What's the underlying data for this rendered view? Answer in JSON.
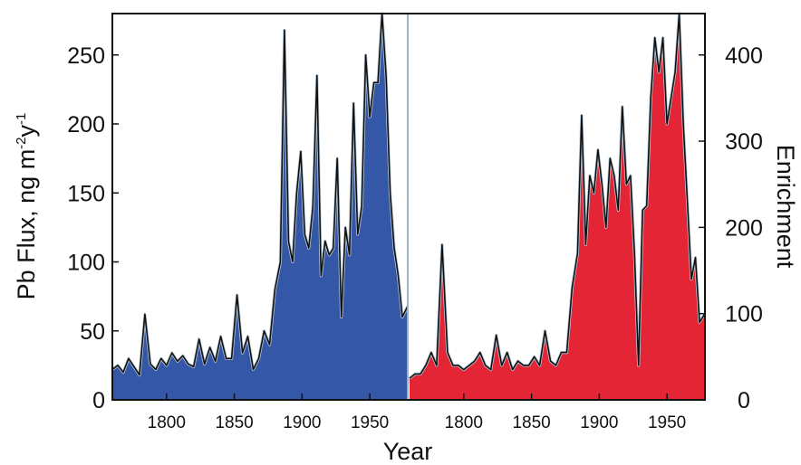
{
  "chart_data": [
    {
      "type": "area",
      "color": "#3557a8",
      "xlim": [
        1760,
        1978
      ],
      "ylim": [
        0,
        280
      ],
      "ylabel_main": "Pb Flux, ng m",
      "ylabel_sup1": "-2",
      "ylabel_mid": "y",
      "ylabel_sup2": "-1",
      "yticks": [
        0,
        50,
        100,
        150,
        200,
        250
      ],
      "xticks": [
        1800,
        1850,
        1900,
        1950
      ],
      "x": [
        1760,
        1764,
        1768,
        1772,
        1776,
        1780,
        1784,
        1788,
        1792,
        1796,
        1800,
        1804,
        1808,
        1812,
        1816,
        1820,
        1824,
        1828,
        1832,
        1836,
        1840,
        1844,
        1848,
        1852,
        1856,
        1860,
        1864,
        1868,
        1872,
        1876,
        1880,
        1884,
        1887,
        1890,
        1893,
        1896,
        1899,
        1902,
        1905,
        1908,
        1911,
        1914,
        1917,
        1920,
        1923,
        1926,
        1929,
        1932,
        1935,
        1938,
        1941,
        1944,
        1947,
        1950,
        1953,
        1956,
        1959,
        1962,
        1965,
        1968,
        1971,
        1974,
        1978
      ],
      "y": [
        22,
        25,
        20,
        30,
        24,
        18,
        62,
        26,
        22,
        30,
        25,
        34,
        28,
        32,
        26,
        24,
        44,
        26,
        38,
        28,
        46,
        30,
        30,
        76,
        34,
        46,
        22,
        30,
        50,
        40,
        80,
        100,
        268,
        115,
        100,
        150,
        180,
        120,
        110,
        140,
        235,
        90,
        115,
        105,
        110,
        175,
        60,
        125,
        105,
        215,
        120,
        140,
        250,
        205,
        230,
        230,
        280,
        235,
        150,
        110,
        90,
        60,
        68
      ]
    },
    {
      "type": "area",
      "color": "#e32536",
      "xlim": [
        1760,
        1978
      ],
      "ylim": [
        0,
        448
      ],
      "ylabel": "Enrichment",
      "yticks": [
        0,
        100,
        200,
        300,
        400
      ],
      "xticks": [
        1800,
        1850,
        1900,
        1950
      ],
      "x": [
        1760,
        1764,
        1768,
        1772,
        1776,
        1780,
        1784,
        1788,
        1792,
        1796,
        1800,
        1804,
        1808,
        1812,
        1816,
        1820,
        1824,
        1828,
        1832,
        1836,
        1840,
        1844,
        1848,
        1852,
        1856,
        1860,
        1864,
        1868,
        1872,
        1876,
        1880,
        1884,
        1887,
        1890,
        1893,
        1896,
        1899,
        1902,
        1905,
        1908,
        1911,
        1914,
        1917,
        1920,
        1923,
        1926,
        1929,
        1932,
        1935,
        1938,
        1941,
        1944,
        1947,
        1950,
        1953,
        1956,
        1959,
        1962,
        1965,
        1968,
        1971,
        1974,
        1978
      ],
      "y": [
        25,
        30,
        30,
        40,
        55,
        40,
        180,
        55,
        40,
        40,
        35,
        40,
        45,
        55,
        40,
        35,
        75,
        40,
        55,
        35,
        45,
        40,
        40,
        50,
        40,
        80,
        45,
        40,
        55,
        55,
        130,
        170,
        330,
        180,
        260,
        240,
        290,
        250,
        200,
        280,
        260,
        220,
        340,
        250,
        260,
        170,
        40,
        220,
        225,
        350,
        420,
        380,
        420,
        320,
        350,
        380,
        448,
        320,
        230,
        140,
        165,
        90,
        100
      ]
    }
  ],
  "xlabel": "Year"
}
